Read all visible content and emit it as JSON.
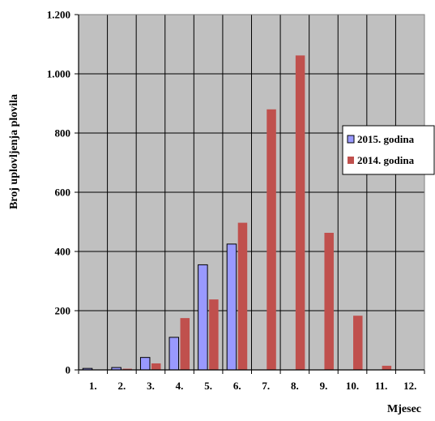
{
  "chart_data": {
    "type": "bar",
    "title": "",
    "xlabel": "Mjesec",
    "ylabel": "Broj uplovljenja plovila",
    "ylim": [
      0,
      1200
    ],
    "yticks": [
      0,
      200,
      400,
      600,
      800,
      1000,
      1200
    ],
    "ytick_labels": [
      "0",
      "200",
      "400",
      "600",
      "800",
      "1.000",
      "1.200"
    ],
    "categories": [
      "1.",
      "2.",
      "3.",
      "4.",
      "5.",
      "6.",
      "7.",
      "8.",
      "9.",
      "10.",
      "11.",
      "12."
    ],
    "series": [
      {
        "name": "2015. godina",
        "color": "#9999ff",
        "values": [
          5,
          8,
          42,
          110,
          355,
          425,
          0,
          0,
          0,
          0,
          0,
          0
        ]
      },
      {
        "name": "2014. godina",
        "color": "#c0504d",
        "values": [
          0,
          4,
          22,
          175,
          238,
          497,
          880,
          1062,
          463,
          183,
          14,
          1
        ]
      }
    ],
    "grid": true,
    "plot_background": "#c0c0c0",
    "legend_position": "right"
  }
}
